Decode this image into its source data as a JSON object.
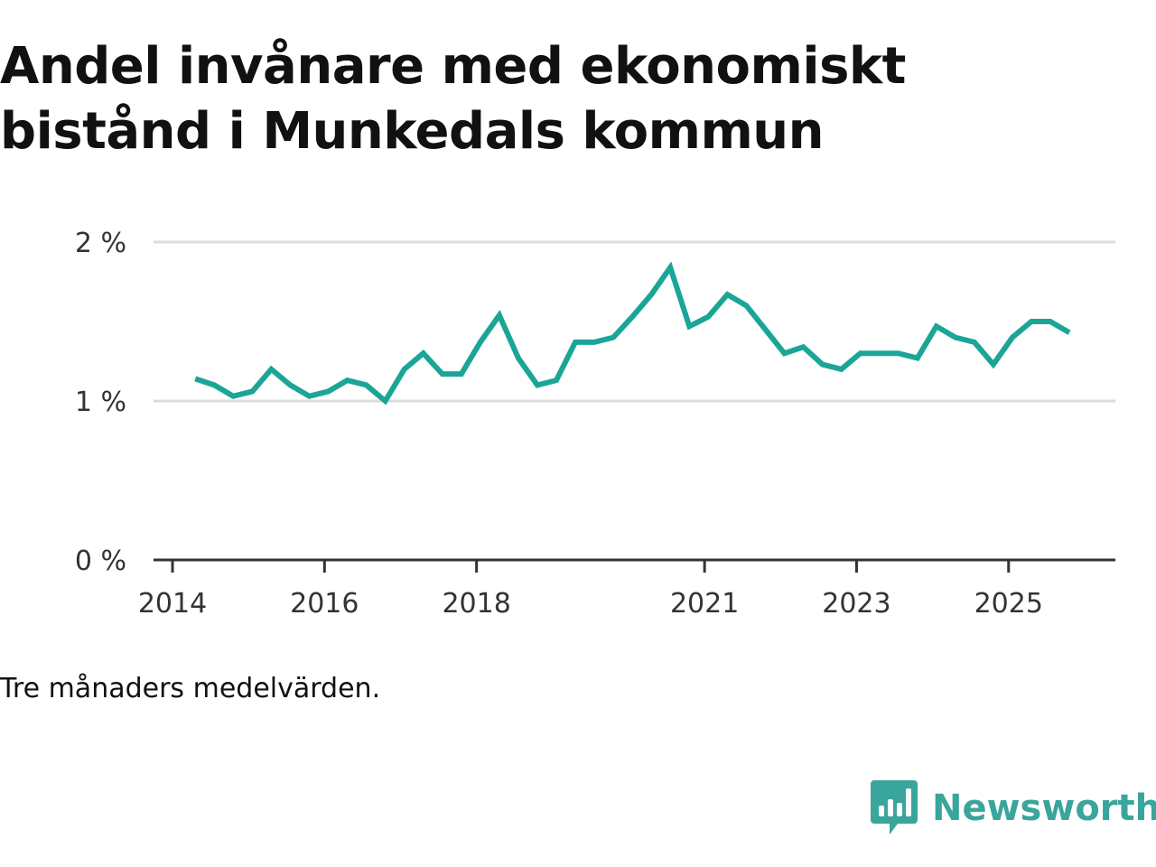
{
  "chart_data": {
    "type": "line",
    "title": "Andel invånare med ekonomiskt bistånd i Munkedals kommun",
    "note": "Tre månaders medelvärden.",
    "ylabel": "",
    "xlabel": "",
    "ylim": [
      0,
      2
    ],
    "xlim": [
      2014,
      2026.5
    ],
    "y_ticks": [
      {
        "value": 0,
        "label": "0 %"
      },
      {
        "value": 1,
        "label": "1 %"
      },
      {
        "value": 2,
        "label": "2 %"
      }
    ],
    "x_ticks": [
      {
        "value": 2014,
        "label": "2014"
      },
      {
        "value": 2016,
        "label": "2016"
      },
      {
        "value": 2018,
        "label": "2018"
      },
      {
        "value": 2021,
        "label": "2021"
      },
      {
        "value": 2023,
        "label": "2023"
      },
      {
        "value": 2025,
        "label": "2025"
      }
    ],
    "grid": true,
    "line_color": "#1ba597",
    "series": [
      {
        "name": "Andel invånare med ekonomiskt bistånd",
        "x": [
          2014.3,
          2014.55,
          2014.8,
          2015.05,
          2015.3,
          2015.55,
          2015.8,
          2016.05,
          2016.3,
          2016.55,
          2016.8,
          2017.05,
          2017.3,
          2017.55,
          2017.8,
          2018.05,
          2018.3,
          2018.55,
          2018.8,
          2019.05,
          2019.3,
          2019.55,
          2019.8,
          2020.05,
          2020.3,
          2020.55,
          2020.8,
          2021.05,
          2021.3,
          2021.55,
          2021.8,
          2022.05,
          2022.3,
          2022.55,
          2022.8,
          2023.05,
          2023.3,
          2023.55,
          2023.8,
          2024.05,
          2024.3,
          2024.55,
          2024.8,
          2025.05,
          2025.3,
          2025.55,
          2025.8
        ],
        "values": [
          1.14,
          1.1,
          1.03,
          1.06,
          1.2,
          1.1,
          1.03,
          1.06,
          1.13,
          1.1,
          1.0,
          1.2,
          1.3,
          1.17,
          1.17,
          1.37,
          1.54,
          1.27,
          1.1,
          1.13,
          1.37,
          1.37,
          1.4,
          1.53,
          1.67,
          1.84,
          1.47,
          1.53,
          1.67,
          1.6,
          1.45,
          1.3,
          1.34,
          1.23,
          1.2,
          1.3,
          1.3,
          1.3,
          1.27,
          1.47,
          1.4,
          1.37,
          1.23,
          1.4,
          1.5,
          1.5,
          1.43
        ]
      }
    ]
  },
  "footer": {
    "note": "Tre månaders medelvärden.",
    "brand": "Newsworthy",
    "brand_color": "#3aa59a"
  }
}
